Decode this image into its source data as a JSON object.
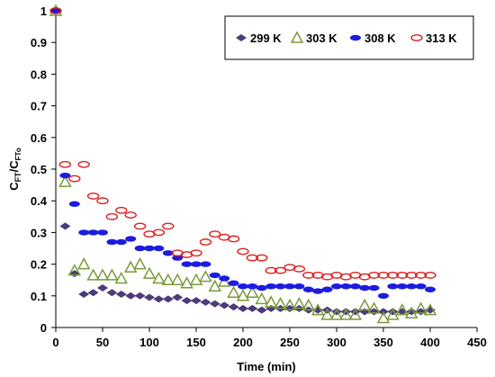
{
  "chart_data": {
    "type": "scatter",
    "xlabel": "Time (min)",
    "ylabel": "C",
    "ylabel_sub": "FT",
    "ylabel_sep": "/C",
    "ylabel_sub2": "FTo",
    "xlim": [
      0,
      450
    ],
    "ylim": [
      0,
      1
    ],
    "x_ticks": [
      "0",
      "50",
      "100",
      "150",
      "200",
      "250",
      "300",
      "350",
      "400",
      "450"
    ],
    "y_ticks": [
      "0",
      "0.1",
      "0.2",
      "0.3",
      "0.4",
      "0.5",
      "0.6",
      "0.7",
      "0.8",
      "0.9",
      "1"
    ],
    "grid": false,
    "legend_position": "top-right",
    "series": [
      {
        "name": "299 K",
        "marker": "diamond",
        "color": "#4b3b7a",
        "x": [
          0,
          10,
          20,
          30,
          40,
          50,
          60,
          70,
          80,
          90,
          100,
          110,
          120,
          130,
          140,
          150,
          160,
          170,
          180,
          190,
          200,
          210,
          220,
          230,
          240,
          250,
          260,
          270,
          280,
          290,
          300,
          310,
          320,
          330,
          340,
          350,
          360,
          370,
          380,
          390,
          400
        ],
        "y": [
          1.0,
          0.32,
          0.17,
          0.105,
          0.11,
          0.125,
          0.11,
          0.105,
          0.1,
          0.1,
          0.095,
          0.09,
          0.09,
          0.095,
          0.085,
          0.085,
          0.08,
          0.075,
          0.07,
          0.065,
          0.06,
          0.06,
          0.055,
          0.06,
          0.06,
          0.06,
          0.06,
          0.055,
          0.055,
          0.055,
          0.05,
          0.05,
          0.05,
          0.05,
          0.05,
          0.05,
          0.05,
          0.05,
          0.05,
          0.05,
          0.055
        ]
      },
      {
        "name": "303 K",
        "marker": "triangle",
        "color": "#7a9a3a",
        "x": [
          0,
          10,
          20,
          30,
          40,
          50,
          60,
          70,
          80,
          90,
          100,
          110,
          120,
          130,
          140,
          150,
          160,
          170,
          180,
          190,
          200,
          210,
          220,
          230,
          240,
          250,
          260,
          270,
          280,
          290,
          300,
          310,
          320,
          330,
          340,
          350,
          360,
          370,
          380,
          390,
          400
        ],
        "y": [
          1.0,
          0.46,
          0.18,
          0.2,
          0.165,
          0.165,
          0.165,
          0.155,
          0.19,
          0.2,
          0.17,
          0.155,
          0.15,
          0.15,
          0.14,
          0.15,
          0.16,
          0.13,
          0.145,
          0.11,
          0.1,
          0.11,
          0.09,
          0.08,
          0.075,
          0.07,
          0.075,
          0.07,
          0.055,
          0.04,
          0.04,
          0.04,
          0.04,
          0.07,
          0.06,
          0.03,
          0.04,
          0.055,
          0.045,
          0.06,
          0.055
        ]
      },
      {
        "name": "308 K",
        "marker": "circle",
        "color": "#1c1ce0",
        "x": [
          0,
          10,
          20,
          30,
          40,
          50,
          60,
          70,
          80,
          90,
          100,
          110,
          120,
          130,
          140,
          150,
          160,
          170,
          180,
          190,
          200,
          210,
          220,
          230,
          240,
          250,
          260,
          270,
          280,
          290,
          300,
          310,
          320,
          330,
          340,
          350,
          360,
          370,
          380,
          390,
          400
        ],
        "y": [
          1.0,
          0.48,
          0.39,
          0.3,
          0.3,
          0.3,
          0.27,
          0.27,
          0.28,
          0.25,
          0.25,
          0.25,
          0.235,
          0.22,
          0.2,
          0.2,
          0.2,
          0.165,
          0.155,
          0.14,
          0.13,
          0.13,
          0.125,
          0.13,
          0.13,
          0.13,
          0.13,
          0.12,
          0.115,
          0.12,
          0.13,
          0.13,
          0.13,
          0.125,
          0.125,
          0.1,
          0.13,
          0.13,
          0.13,
          0.13,
          0.12
        ]
      },
      {
        "name": "313 K",
        "marker": "circle-open",
        "color": "#e02020",
        "x": [
          0,
          10,
          20,
          30,
          40,
          50,
          60,
          70,
          80,
          90,
          100,
          110,
          120,
          130,
          140,
          150,
          160,
          170,
          180,
          190,
          200,
          210,
          220,
          230,
          240,
          250,
          260,
          270,
          280,
          290,
          300,
          310,
          320,
          330,
          340,
          350,
          360,
          370,
          380,
          390,
          400
        ],
        "y": [
          1.0,
          0.515,
          0.47,
          0.515,
          0.415,
          0.4,
          0.35,
          0.37,
          0.355,
          0.32,
          0.295,
          0.3,
          0.32,
          0.235,
          0.23,
          0.235,
          0.27,
          0.295,
          0.285,
          0.28,
          0.24,
          0.22,
          0.22,
          0.18,
          0.18,
          0.19,
          0.185,
          0.165,
          0.165,
          0.16,
          0.165,
          0.16,
          0.165,
          0.16,
          0.165,
          0.165,
          0.165,
          0.165,
          0.165,
          0.165,
          0.165
        ]
      }
    ]
  }
}
